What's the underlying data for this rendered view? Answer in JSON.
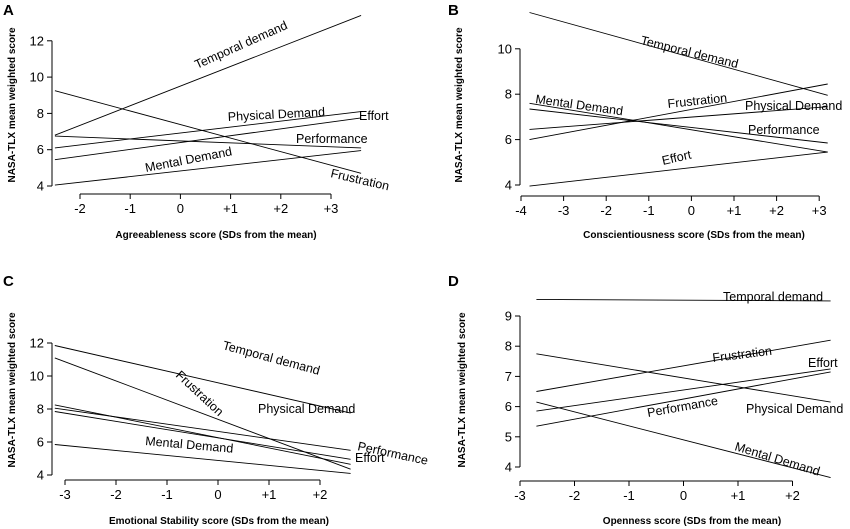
{
  "chart_data": [
    {
      "panel": "A",
      "type": "line",
      "xlabel": "Agreeableness score (SDs from the mean)",
      "ylabel": "NASA-TLX mean weighted score",
      "x_ticks": [
        -2,
        -1,
        0,
        1,
        2,
        3
      ],
      "x_tick_labels": [
        "-2",
        "-1",
        "0",
        "+1",
        "+2",
        "+3"
      ],
      "y_ticks": [
        4,
        6,
        8,
        10,
        12
      ],
      "y_tick_labels": [
        "4",
        "6",
        "8",
        "10",
        "12"
      ],
      "xlim": [
        -2.5,
        3.5
      ],
      "ylim": [
        3.7,
        13.3
      ],
      "series": [
        {
          "name": "Temporal demand",
          "x": [
            -2.5,
            3.6
          ],
          "y": [
            6.8,
            13.4
          ]
        },
        {
          "name": "Physical Demand",
          "x": [
            -2.5,
            3.6
          ],
          "y": [
            6.1,
            8.1
          ]
        },
        {
          "name": "Effort",
          "x": [
            -2.5,
            3.6
          ],
          "y": [
            5.45,
            7.75
          ]
        },
        {
          "name": "Performance",
          "x": [
            -2.5,
            3.6
          ],
          "y": [
            6.75,
            6.1
          ]
        },
        {
          "name": "Mental Demand",
          "x": [
            -2.5,
            3.6
          ],
          "y": [
            4.05,
            5.95
          ]
        },
        {
          "name": "Frustration",
          "x": [
            -2.5,
            3.6
          ],
          "y": [
            9.25,
            4.7
          ]
        }
      ]
    },
    {
      "panel": "B",
      "type": "line",
      "xlabel": "Conscientiousness score (SDs from the mean)",
      "ylabel": "NASA-TLX mean weighted score",
      "x_ticks": [
        -4,
        -3,
        -2,
        -1,
        0,
        1,
        2,
        3
      ],
      "x_tick_labels": [
        "-4",
        "-3",
        "-2",
        "-1",
        "0",
        "+1",
        "+2",
        "+3"
      ],
      "y_ticks": [
        4,
        6,
        8,
        10
      ],
      "y_tick_labels": [
        "4",
        "6",
        "8",
        "10"
      ],
      "xlim": [
        -4,
        3.2
      ],
      "ylim": [
        3.7,
        11.7
      ],
      "series": [
        {
          "name": "Temporal demand",
          "x": [
            -3.8,
            3.2
          ],
          "y": [
            11.6,
            7.95
          ]
        },
        {
          "name": "Frustration",
          "x": [
            -3.8,
            3.2
          ],
          "y": [
            6.0,
            8.45
          ]
        },
        {
          "name": "Physical Demand",
          "x": [
            -3.8,
            3.2
          ],
          "y": [
            6.45,
            7.45
          ]
        },
        {
          "name": "Mental Demand",
          "x": [
            -3.8,
            3.2
          ],
          "y": [
            7.6,
            5.45
          ]
        },
        {
          "name": "Performance",
          "x": [
            -3.8,
            3.2
          ],
          "y": [
            7.35,
            5.85
          ]
        },
        {
          "name": "Effort",
          "x": [
            -3.8,
            3.2
          ],
          "y": [
            3.95,
            5.45
          ]
        }
      ]
    },
    {
      "panel": "C",
      "type": "line",
      "xlabel": "Emotional Stability score (SDs from the mean)",
      "ylabel": "NASA-TLX mean weighted score",
      "x_ticks": [
        -3,
        -2,
        -1,
        0,
        1,
        2
      ],
      "x_tick_labels": [
        "-3",
        "-2",
        "-1",
        "0",
        "+1",
        "+2"
      ],
      "y_ticks": [
        4,
        6,
        8,
        10,
        12
      ],
      "y_tick_labels": [
        "4",
        "6",
        "8",
        "10",
        "12"
      ],
      "xlim": [
        -3.2,
        2.8
      ],
      "ylim": [
        3.7,
        12.2
      ],
      "series": [
        {
          "name": "Temporal demand",
          "x": [
            -3.2,
            2.6
          ],
          "y": [
            11.85,
            7.75
          ]
        },
        {
          "name": "Frustration",
          "x": [
            -3.2,
            2.6
          ],
          "y": [
            11.1,
            4.35
          ]
        },
        {
          "name": "Physical Demand",
          "x": [
            -3.2,
            2.6
          ],
          "y": [
            8.25,
            4.65
          ]
        },
        {
          "name": "Performance",
          "x": [
            -3.2,
            2.6
          ],
          "y": [
            8.05,
            5.5
          ]
        },
        {
          "name": "Effort",
          "x": [
            -3.2,
            2.6
          ],
          "y": [
            7.85,
            4.95
          ]
        },
        {
          "name": "Mental Demand",
          "x": [
            -3.2,
            2.6
          ],
          "y": [
            5.85,
            4.1
          ]
        }
      ]
    },
    {
      "panel": "D",
      "type": "line",
      "xlabel": "Openness score (SDs from the mean)",
      "ylabel": "NASA-TLX mean weighted score",
      "x_ticks": [
        -3,
        -2,
        -1,
        0,
        1,
        2
      ],
      "x_tick_labels": [
        "-3",
        "-2",
        "-1",
        "0",
        "+1",
        "+2"
      ],
      "y_ticks": [
        4,
        5,
        6,
        7,
        8,
        9
      ],
      "y_tick_labels": [
        "4",
        "5",
        "6",
        "7",
        "8",
        "9"
      ],
      "xlim": [
        -3,
        2.8
      ],
      "ylim": [
        3.5,
        9.9
      ],
      "series": [
        {
          "name": "Temporal demand",
          "x": [
            -2.7,
            2.7
          ],
          "y": [
            9.55,
            9.5
          ]
        },
        {
          "name": "Frustration",
          "x": [
            -2.7,
            2.7
          ],
          "y": [
            6.5,
            8.2
          ]
        },
        {
          "name": "Effort",
          "x": [
            -2.7,
            2.7
          ],
          "y": [
            5.85,
            7.25
          ]
        },
        {
          "name": "Performance",
          "x": [
            -2.7,
            2.7
          ],
          "y": [
            5.35,
            7.15
          ]
        },
        {
          "name": "Physical Demand",
          "x": [
            -2.7,
            2.7
          ],
          "y": [
            7.75,
            6.15
          ]
        },
        {
          "name": "Mental Demand",
          "x": [
            -2.7,
            2.7
          ],
          "y": [
            6.15,
            3.65
          ]
        }
      ]
    }
  ]
}
